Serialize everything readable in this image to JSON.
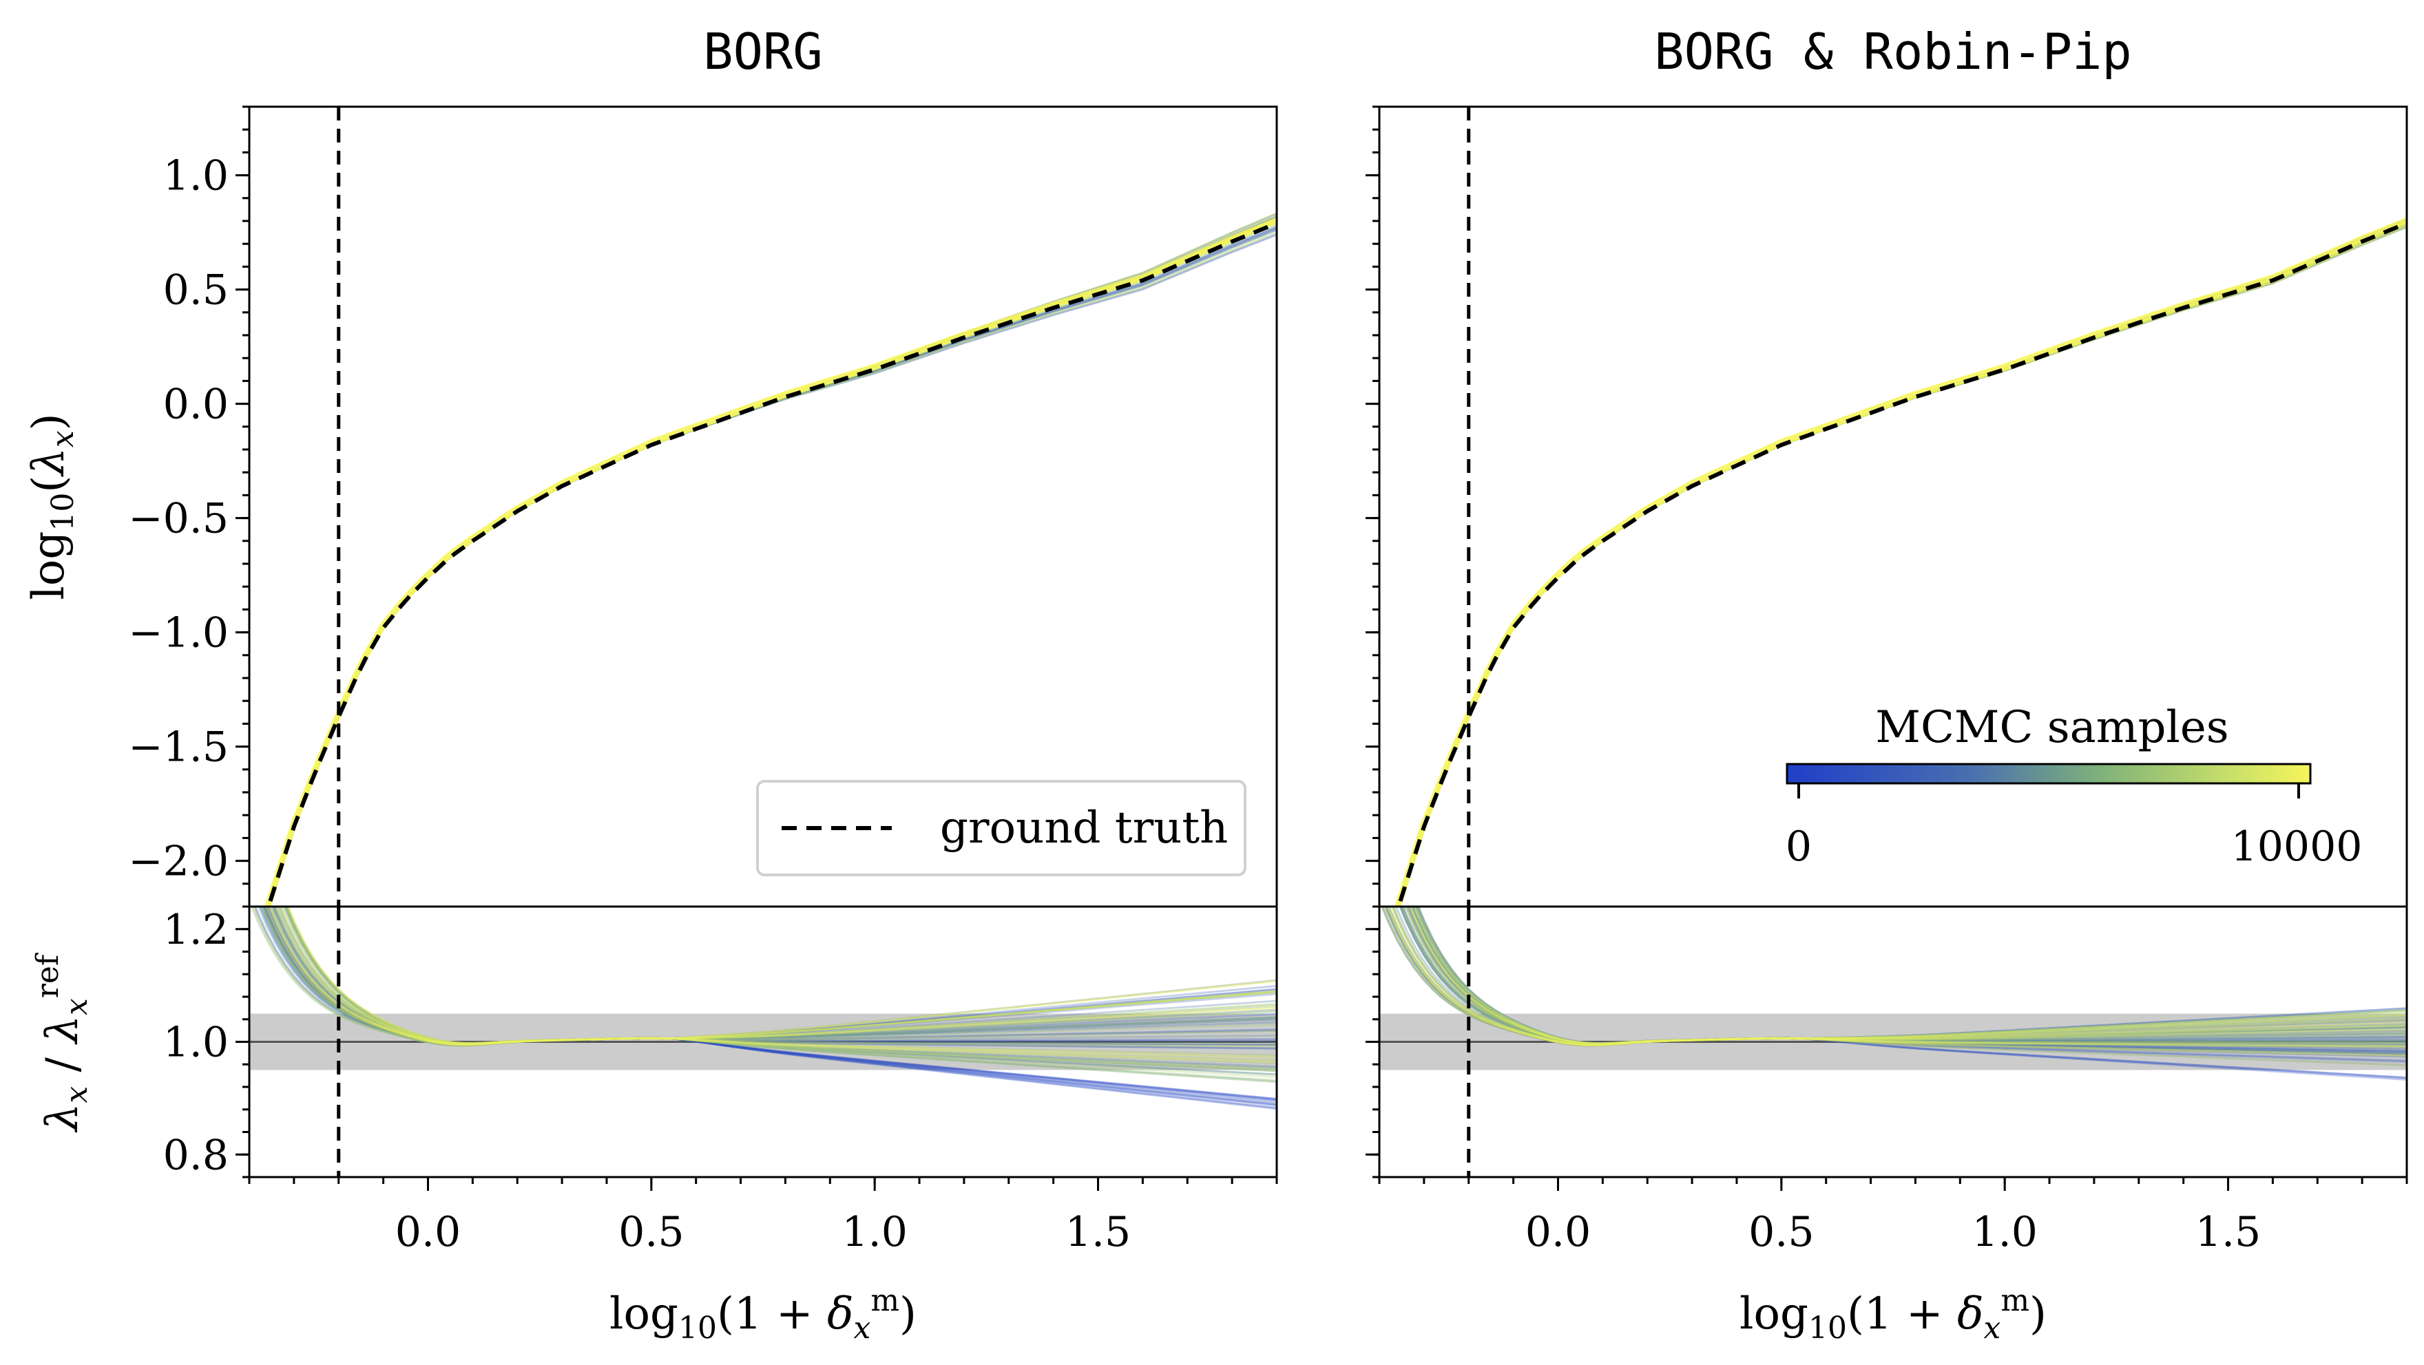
{
  "chart_data": [
    {
      "type": "line",
      "panel": "main",
      "title": "BORG",
      "xlabel": "",
      "ylabel": "log10(λx)",
      "xlim": [
        -0.4,
        1.9
      ],
      "ylim": [
        -2.2,
        1.3
      ],
      "yticks": [
        -2.0,
        -1.5,
        -1.0,
        -0.5,
        0.0,
        0.5,
        1.0
      ],
      "ytick_labels": [
        "−2.0",
        "−1.5",
        "−1.0",
        "−0.5",
        "0.0",
        "0.5",
        "1.0"
      ],
      "vline_x": -0.2,
      "legend": {
        "placement": "lower-right",
        "entries": [
          "ground truth"
        ]
      },
      "ground_truth": {
        "x": [
          -0.36,
          -0.3,
          -0.25,
          -0.2,
          -0.15,
          -0.1,
          -0.05,
          0.0,
          0.05,
          0.1,
          0.2,
          0.3,
          0.4,
          0.5,
          0.6,
          0.8,
          1.0,
          1.2,
          1.4,
          1.6,
          1.8,
          1.9
        ],
        "y": [
          -2.22,
          -1.85,
          -1.6,
          -1.37,
          -1.15,
          -0.98,
          -0.86,
          -0.76,
          -0.67,
          -0.6,
          -0.47,
          -0.36,
          -0.27,
          -0.18,
          -0.11,
          0.03,
          0.15,
          0.29,
          0.42,
          0.54,
          0.71,
          0.79
        ]
      },
      "sample_spread": 0.05
    },
    {
      "type": "line",
      "panel": "ratio",
      "title": "",
      "xlabel": "log10(1 + δxm)",
      "ylabel": "λx / λxref",
      "xlim": [
        -0.4,
        1.9
      ],
      "ylim": [
        0.76,
        1.24
      ],
      "yticks": [
        0.8,
        1.0,
        1.2
      ],
      "ytick_labels": [
        "0.8",
        "1.0",
        "1.2"
      ],
      "xticks": [
        0.0,
        0.5,
        1.0,
        1.5
      ],
      "xtick_labels": [
        "0.0",
        "0.5",
        "1.0",
        "1.5"
      ],
      "band": [
        0.95,
        1.05
      ],
      "vline_x": -0.2,
      "end_spread": {
        "low": 0.88,
        "high": 1.11
      }
    },
    {
      "type": "line",
      "panel": "main",
      "title": "BORG & Robin-Pip",
      "xlabel": "",
      "ylabel": "",
      "xlim": [
        -0.4,
        1.9
      ],
      "ylim": [
        -2.2,
        1.3
      ],
      "vline_x": -0.2,
      "colorbar": {
        "label": "MCMC samples",
        "ticks": [
          "0",
          "10000"
        ],
        "range": [
          0,
          10000
        ]
      },
      "sample_spread": 0.02
    },
    {
      "type": "line",
      "panel": "ratio",
      "title": "",
      "xlabel": "log10(1 + δxm)",
      "ylabel": "",
      "xlim": [
        -0.4,
        1.9
      ],
      "ylim": [
        0.76,
        1.24
      ],
      "xticks": [
        0.0,
        0.5,
        1.0,
        1.5
      ],
      "xtick_labels": [
        "0.0",
        "0.5",
        "1.0",
        "1.5"
      ],
      "band": [
        0.95,
        1.05
      ],
      "vline_x": -0.2,
      "end_spread": {
        "low": 0.93,
        "high": 1.06
      }
    }
  ],
  "colors": {
    "colormap_start": "#1f3fc8",
    "colormap_mid": "#7fb27a",
    "colormap_end": "#f5f55a",
    "band": "#cccccc",
    "ground_truth": "#000000"
  }
}
